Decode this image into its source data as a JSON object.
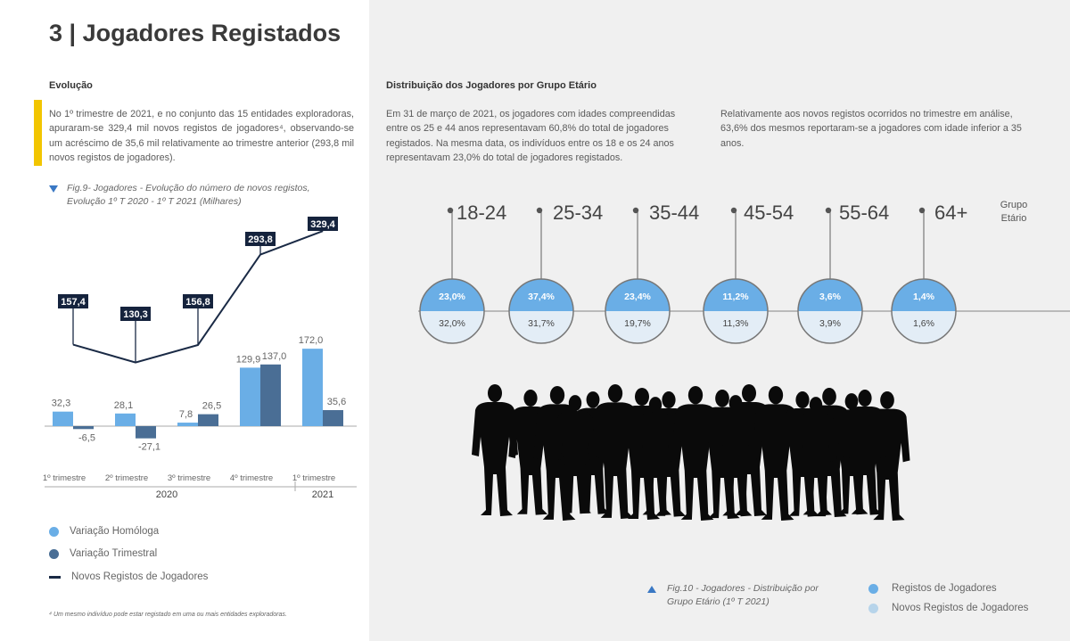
{
  "page_title": "3 | Jogadores Registados",
  "left": {
    "heading": "Evolução",
    "paragraph": "No 1º trimestre de 2021, e no conjunto das 15 entidades exploradoras, apuraram-se 329,4 mil novos registos de jogadores⁴, observando-se um acréscimo de 35,6 mil relativamente ao trimestre anterior (293,8 mil novos registos de jogadores).",
    "fig_caption": "Fig.9- Jogadores - Evolução do número de novos registos, Evolução 1º T 2020 - 1º T 2021 (Milhares)",
    "legend": [
      {
        "label": "Variação Homóloga",
        "color": "#6aaee6",
        "shape": "dot"
      },
      {
        "label": "Variação Trimestral",
        "color": "#4a6e95",
        "shape": "dot"
      },
      {
        "label": "Novos Registos de Jogadores",
        "color": "#1a2a45",
        "shape": "line"
      }
    ],
    "footnote": "⁴ Um mesmo indivíduo pode estar registado em uma ou mais entidades exploradoras."
  },
  "right": {
    "heading": "Distribuição dos Jogadores por Grupo Etário",
    "paragraph1": "Em 31 de março de 2021, os jogadores com idades compreendidas entre os 25 e 44 anos representavam 60,8% do total de jogadores registados. Na mesma data, os indivíduos entre os 18 e os 24 anos representavam 23,0% do total de jogadores registados.",
    "paragraph2": "Relativamente aos novos registos ocorridos no trimestre em análise, 63,6% dos mesmos reportaram-se a jogadores com idade inferior a 35 anos.",
    "fig_caption": "Fig.10 - Jogadores - Distribuição por Grupo Etário (1º T 2021)",
    "legend": [
      {
        "label": "Registos de Jogadores",
        "color": "#6aaee6"
      },
      {
        "label": "Novos Registos de Jogadores",
        "color": "#b7d4ea"
      }
    ],
    "group_label_line1": "Grupo",
    "group_label_line2": "Etário",
    "colors": {
      "top": "#6aaee6",
      "bottom": "#e3edf6",
      "border": "#777777",
      "axis": "#999999"
    }
  },
  "chart_data": [
    {
      "type": "bar+line",
      "title": "Fig.9- Jogadores - Evolução do número de novos registos, Evolução 1º T 2020 - 1º T 2021 (Milhares)",
      "categories": [
        "1º trimestre",
        "2º trimestre",
        "3º trimestre",
        "4º trimestre",
        "1º trimestre"
      ],
      "years": [
        {
          "label": "2020",
          "span": [
            0,
            3
          ]
        },
        {
          "label": "2021",
          "span": [
            4,
            4
          ]
        }
      ],
      "series": [
        {
          "name": "Variação Homóloga",
          "kind": "bar",
          "color": "#6aaee6",
          "values": [
            32.3,
            28.1,
            7.8,
            129.9,
            172.0
          ],
          "labels": [
            "32,3",
            "28,1",
            "7,8",
            "129,9",
            "172,0"
          ]
        },
        {
          "name": "Variação Trimestral",
          "kind": "bar",
          "color": "#4a6e95",
          "values": [
            -6.5,
            -27.1,
            26.5,
            137.0,
            35.6
          ],
          "labels": [
            "-6,5",
            "-27,1",
            "26,5",
            "137,0",
            "35,6"
          ]
        },
        {
          "name": "Novos Registos de Jogadores",
          "kind": "line",
          "color": "#1a2a45",
          "values": [
            157.4,
            130.3,
            156.8,
            293.8,
            329.4
          ],
          "labels": [
            "157,4",
            "130,3",
            "156,8",
            "293,8",
            "329,4"
          ]
        }
      ]
    },
    {
      "type": "bubble-category",
      "title": "Fig.10 - Jogadores - Distribuição por Grupo Etário (1º T 2021)",
      "categories": [
        "18-24",
        "25-34",
        "35-44",
        "45-54",
        "55-64",
        "64+"
      ],
      "series": [
        {
          "name": "Registos de Jogadores",
          "values": [
            23.0,
            37.4,
            23.4,
            11.2,
            3.6,
            1.4
          ],
          "labels": [
            "23,0%",
            "37,4%",
            "23,4%",
            "11,2%",
            "3,6%",
            "1,4%"
          ]
        },
        {
          "name": "Novos Registos de Jogadores",
          "values": [
            32.0,
            31.7,
            19.7,
            11.3,
            3.9,
            1.6
          ],
          "labels": [
            "32,0%",
            "31,7%",
            "19,7%",
            "11,3%",
            "3,9%",
            "1,6%"
          ]
        }
      ]
    }
  ]
}
